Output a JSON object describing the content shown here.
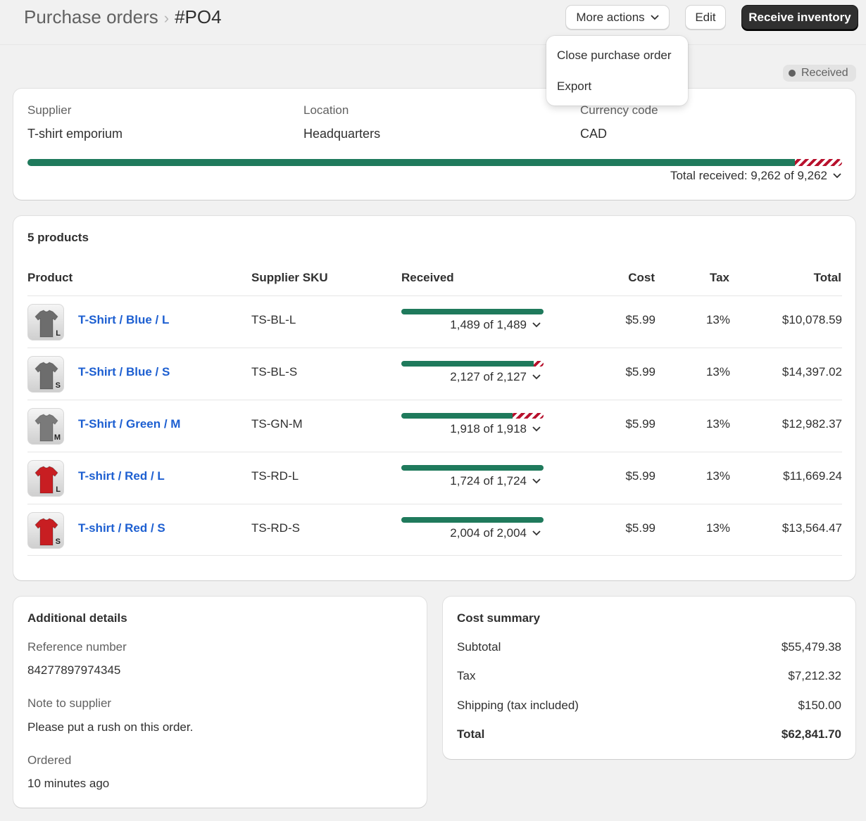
{
  "header": {
    "breadcrumb": "Purchase orders",
    "title": "#PO4",
    "more_actions_label": "More actions",
    "edit_label": "Edit",
    "receive_label": "Receive inventory"
  },
  "dropdown": {
    "items": [
      "Close purchase order",
      "Export"
    ]
  },
  "status_badge": "Received",
  "info": {
    "supplier_label": "Supplier",
    "supplier_value": "T-shirt emporium",
    "location_label": "Location",
    "location_value": "Headquarters",
    "currency_label": "Currency code",
    "currency_value": "CAD",
    "total_received": "Total received: 9,262 of 9,262",
    "progress_fraction": 0.942
  },
  "products": {
    "count_label": "5 products",
    "headers": {
      "product": "Product",
      "sku": "Supplier SKU",
      "received": "Received",
      "cost": "Cost",
      "tax": "Tax",
      "total": "Total"
    },
    "rows": [
      {
        "name": "T-Shirt / Blue / L",
        "size": "L",
        "sku": "TS-BL-L",
        "received": "1,489 of 1,489",
        "cost": "$5.99",
        "tax": "13%",
        "total": "$10,078.59",
        "accepted_fraction": 1.0,
        "shirt_color": "#6d6d6d"
      },
      {
        "name": "T-Shirt / Blue / S",
        "size": "S",
        "sku": "TS-BL-S",
        "received": "2,127 of 2,127",
        "cost": "$5.99",
        "tax": "13%",
        "total": "$14,397.02",
        "accepted_fraction": 0.93,
        "shirt_color": "#6d6d6d"
      },
      {
        "name": "T-Shirt / Green / M",
        "size": "M",
        "sku": "TS-GN-M",
        "received": "1,918 of 1,918",
        "cost": "$5.99",
        "tax": "13%",
        "total": "$12,982.37",
        "accepted_fraction": 0.78,
        "shirt_color": "#7a7a7a"
      },
      {
        "name": "T-shirt / Red / L",
        "size": "L",
        "sku": "TS-RD-L",
        "received": "1,724 of 1,724",
        "cost": "$5.99",
        "tax": "13%",
        "total": "$11,669.24",
        "accepted_fraction": 1.0,
        "shirt_color": "#c81e22"
      },
      {
        "name": "T-shirt / Red / S",
        "size": "S",
        "sku": "TS-RD-S",
        "received": "2,004 of 2,004",
        "cost": "$5.99",
        "tax": "13%",
        "total": "$13,564.47",
        "accepted_fraction": 1.0,
        "shirt_color": "#c81e22"
      }
    ]
  },
  "details": {
    "title": "Additional details",
    "ref_label": "Reference number",
    "ref_value": "84277897974345",
    "note_label": "Note to supplier",
    "note_value": "Please put a rush on this order.",
    "ordered_label": "Ordered",
    "ordered_value": "10 minutes ago"
  },
  "summary": {
    "title": "Cost summary",
    "subtotal_label": "Subtotal",
    "subtotal_value": "$55,479.38",
    "tax_label": "Tax",
    "tax_value": "$7,212.32",
    "shipping_label": "Shipping (tax included)",
    "shipping_value": "$150.00",
    "total_label": "Total",
    "total_value": "$62,841.70"
  },
  "colors": {
    "accepted": "#1f7a5c",
    "rejected": "#b8112d",
    "link": "#1d5fd1"
  }
}
